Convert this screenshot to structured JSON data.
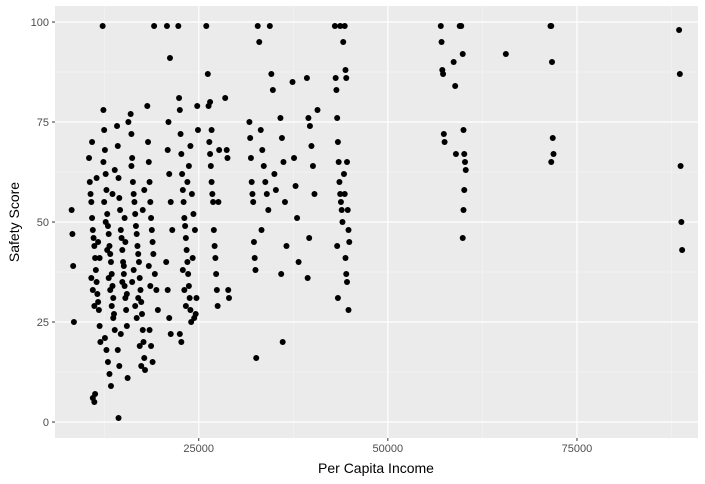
{
  "chart_data": {
    "type": "scatter",
    "title": "",
    "xlabel": "Per Capita Income",
    "ylabel": "Safety Score",
    "xlim": [
      6000,
      91000
    ],
    "ylim": [
      -4,
      104
    ],
    "x_ticks": [
      25000,
      50000,
      75000
    ],
    "x_tick_labels": [
      "25000",
      "50000",
      "75000"
    ],
    "y_ticks": [
      0,
      25,
      50,
      75,
      100
    ],
    "y_tick_labels": [
      "0",
      "25",
      "50",
      "75",
      "100"
    ],
    "grid": true,
    "legend": "none",
    "colors": {
      "panel": "#ebebeb",
      "grid_major": "#ffffff",
      "grid_minor": "#f5f5f5",
      "point": "#000000"
    },
    "points": [
      [
        8200,
        53
      ],
      [
        8300,
        47
      ],
      [
        8400,
        39
      ],
      [
        8500,
        25
      ],
      [
        10500,
        66
      ],
      [
        10600,
        60
      ],
      [
        10700,
        57
      ],
      [
        10800,
        55
      ],
      [
        10900,
        51
      ],
      [
        11000,
        48
      ],
      [
        11100,
        46
      ],
      [
        11200,
        44
      ],
      [
        11300,
        41
      ],
      [
        11400,
        38
      ],
      [
        11500,
        35
      ],
      [
        11600,
        32
      ],
      [
        11700,
        30
      ],
      [
        11800,
        28
      ],
      [
        11900,
        24
      ],
      [
        12000,
        20
      ],
      [
        10800,
        36
      ],
      [
        11000,
        33
      ],
      [
        11200,
        29
      ],
      [
        11000,
        6
      ],
      [
        11200,
        5
      ],
      [
        11300,
        7
      ],
      [
        10900,
        70
      ],
      [
        11500,
        61
      ],
      [
        11700,
        45
      ],
      [
        11900,
        41
      ],
      [
        12300,
        99
      ],
      [
        12400,
        78
      ],
      [
        12500,
        73
      ],
      [
        12600,
        68
      ],
      [
        12700,
        62
      ],
      [
        12800,
        58
      ],
      [
        12900,
        52
      ],
      [
        13000,
        49
      ],
      [
        13100,
        47
      ],
      [
        13200,
        44
      ],
      [
        13300,
        42
      ],
      [
        13400,
        40
      ],
      [
        13500,
        37
      ],
      [
        13600,
        34
      ],
      [
        13700,
        31
      ],
      [
        13800,
        27
      ],
      [
        13900,
        23
      ],
      [
        12600,
        21
      ],
      [
        12800,
        18
      ],
      [
        13000,
        15
      ],
      [
        13200,
        12
      ],
      [
        13400,
        9
      ],
      [
        12500,
        55
      ],
      [
        12700,
        50
      ],
      [
        12900,
        43
      ],
      [
        13100,
        36
      ],
      [
        13300,
        33
      ],
      [
        13500,
        29
      ],
      [
        13700,
        26
      ],
      [
        13900,
        63
      ],
      [
        12400,
        65
      ],
      [
        13600,
        57
      ],
      [
        14200,
        74
      ],
      [
        14300,
        69
      ],
      [
        14400,
        61
      ],
      [
        14500,
        56
      ],
      [
        14600,
        53
      ],
      [
        14700,
        48
      ],
      [
        14800,
        46
      ],
      [
        14900,
        43
      ],
      [
        15000,
        40
      ],
      [
        15100,
        37
      ],
      [
        15200,
        34
      ],
      [
        15300,
        31
      ],
      [
        15400,
        28
      ],
      [
        15500,
        24
      ],
      [
        14300,
        18
      ],
      [
        14500,
        14
      ],
      [
        14700,
        22
      ],
      [
        14900,
        35
      ],
      [
        15100,
        39
      ],
      [
        15300,
        45
      ],
      [
        14400,
        1
      ],
      [
        15600,
        11
      ],
      [
        15700,
        75
      ],
      [
        15200,
        51
      ],
      [
        15500,
        32
      ],
      [
        16000,
        77
      ],
      [
        16100,
        72
      ],
      [
        16200,
        66
      ],
      [
        16300,
        60
      ],
      [
        16400,
        57
      ],
      [
        16500,
        55
      ],
      [
        16600,
        52
      ],
      [
        16700,
        49
      ],
      [
        16800,
        47
      ],
      [
        16900,
        44
      ],
      [
        17000,
        42
      ],
      [
        17100,
        40
      ],
      [
        17200,
        36
      ],
      [
        17300,
        33
      ],
      [
        17400,
        30
      ],
      [
        17500,
        27
      ],
      [
        17600,
        23
      ],
      [
        17700,
        20
      ],
      [
        17800,
        16
      ],
      [
        17900,
        13
      ],
      [
        16200,
        35
      ],
      [
        16400,
        38
      ],
      [
        16600,
        29
      ],
      [
        16800,
        26
      ],
      [
        17000,
        31
      ],
      [
        17200,
        19
      ],
      [
        17400,
        14
      ],
      [
        17600,
        53
      ],
      [
        17800,
        58
      ],
      [
        16100,
        64
      ],
      [
        18200,
        79
      ],
      [
        18300,
        70
      ],
      [
        18400,
        65
      ],
      [
        18500,
        60
      ],
      [
        18600,
        55
      ],
      [
        18700,
        51
      ],
      [
        18800,
        48
      ],
      [
        18900,
        45
      ],
      [
        19000,
        42
      ],
      [
        19200,
        37
      ],
      [
        19400,
        33
      ],
      [
        19600,
        28
      ],
      [
        18500,
        23
      ],
      [
        18700,
        19
      ],
      [
        18900,
        15
      ],
      [
        19100,
        99
      ],
      [
        18400,
        39
      ],
      [
        18600,
        34
      ],
      [
        20800,
        99
      ],
      [
        21200,
        91
      ],
      [
        21000,
        75
      ],
      [
        20900,
        68
      ],
      [
        21100,
        62
      ],
      [
        21300,
        55
      ],
      [
        21500,
        48
      ],
      [
        20700,
        40
      ],
      [
        20900,
        33
      ],
      [
        21100,
        26
      ],
      [
        21300,
        22
      ],
      [
        22300,
        99
      ],
      [
        22400,
        81
      ],
      [
        22500,
        78
      ],
      [
        22600,
        72
      ],
      [
        22700,
        67
      ],
      [
        22800,
        62
      ],
      [
        22900,
        58
      ],
      [
        23000,
        55
      ],
      [
        23100,
        51
      ],
      [
        23200,
        49
      ],
      [
        23300,
        46
      ],
      [
        23400,
        43
      ],
      [
        23500,
        40
      ],
      [
        23600,
        37
      ],
      [
        23700,
        34
      ],
      [
        23800,
        31
      ],
      [
        23900,
        28
      ],
      [
        24000,
        25
      ],
      [
        22500,
        22
      ],
      [
        22700,
        20
      ],
      [
        22900,
        38
      ],
      [
        23100,
        33
      ],
      [
        23300,
        29
      ],
      [
        23500,
        60
      ],
      [
        23700,
        64
      ],
      [
        23900,
        69
      ],
      [
        24100,
        57
      ],
      [
        24300,
        52
      ],
      [
        24500,
        48
      ],
      [
        24200,
        41
      ],
      [
        24400,
        26
      ],
      [
        24600,
        27
      ],
      [
        24700,
        31
      ],
      [
        24800,
        79
      ],
      [
        24900,
        73
      ],
      [
        26000,
        99
      ],
      [
        26200,
        87
      ],
      [
        26300,
        79
      ],
      [
        26400,
        70
      ],
      [
        26500,
        67
      ],
      [
        26600,
        64
      ],
      [
        26700,
        60
      ],
      [
        26800,
        57
      ],
      [
        26900,
        55
      ],
      [
        27000,
        48
      ],
      [
        27100,
        44
      ],
      [
        27200,
        41
      ],
      [
        27300,
        37
      ],
      [
        27400,
        33
      ],
      [
        27500,
        29
      ],
      [
        26500,
        80
      ],
      [
        26700,
        73
      ],
      [
        27600,
        55
      ],
      [
        27700,
        68
      ],
      [
        28500,
        81
      ],
      [
        28700,
        68
      ],
      [
        28800,
        66
      ],
      [
        28900,
        33
      ],
      [
        29000,
        31
      ],
      [
        31700,
        75
      ],
      [
        31800,
        71
      ],
      [
        31900,
        66
      ],
      [
        32000,
        60
      ],
      [
        32100,
        57
      ],
      [
        32200,
        55
      ],
      [
        32300,
        45
      ],
      [
        32400,
        41
      ],
      [
        32500,
        38
      ],
      [
        32600,
        16
      ],
      [
        32800,
        99
      ],
      [
        33000,
        95
      ],
      [
        33200,
        73
      ],
      [
        33400,
        68
      ],
      [
        33600,
        64
      ],
      [
        33800,
        60
      ],
      [
        34000,
        57
      ],
      [
        34200,
        53
      ],
      [
        33300,
        48
      ],
      [
        34400,
        99
      ],
      [
        34600,
        87
      ],
      [
        34800,
        83
      ],
      [
        35000,
        62
      ],
      [
        35200,
        58
      ],
      [
        35800,
        76
      ],
      [
        36000,
        71
      ],
      [
        36200,
        65
      ],
      [
        36400,
        55
      ],
      [
        36600,
        44
      ],
      [
        35900,
        37
      ],
      [
        36100,
        20
      ],
      [
        37400,
        85
      ],
      [
        37600,
        66
      ],
      [
        37800,
        59
      ],
      [
        38000,
        51
      ],
      [
        38200,
        40
      ],
      [
        39300,
        86
      ],
      [
        39500,
        76
      ],
      [
        39700,
        74
      ],
      [
        39900,
        69
      ],
      [
        40100,
        64
      ],
      [
        40300,
        57
      ],
      [
        39600,
        46
      ],
      [
        39400,
        36
      ],
      [
        40700,
        78
      ],
      [
        43000,
        99
      ],
      [
        43100,
        86
      ],
      [
        43200,
        83
      ],
      [
        43300,
        76
      ],
      [
        43400,
        70
      ],
      [
        43500,
        65
      ],
      [
        43600,
        60
      ],
      [
        43700,
        57
      ],
      [
        43800,
        55
      ],
      [
        43900,
        53
      ],
      [
        44000,
        50
      ],
      [
        43300,
        44
      ],
      [
        43400,
        31
      ],
      [
        43700,
        99
      ],
      [
        44100,
        95
      ],
      [
        44300,
        99
      ],
      [
        44400,
        88
      ],
      [
        44500,
        86
      ],
      [
        44600,
        65
      ],
      [
        44700,
        53
      ],
      [
        44800,
        48
      ],
      [
        44900,
        45
      ],
      [
        44400,
        41
      ],
      [
        44500,
        37
      ],
      [
        44600,
        35
      ],
      [
        44800,
        28
      ],
      [
        44200,
        62
      ],
      [
        44300,
        57
      ],
      [
        57000,
        99
      ],
      [
        57100,
        95
      ],
      [
        57200,
        88
      ],
      [
        57300,
        87
      ],
      [
        57400,
        72
      ],
      [
        57500,
        70
      ],
      [
        58700,
        90
      ],
      [
        58900,
        84
      ],
      [
        59000,
        67
      ],
      [
        59500,
        99
      ],
      [
        59700,
        99
      ],
      [
        59900,
        92
      ],
      [
        60000,
        73
      ],
      [
        60100,
        67
      ],
      [
        60200,
        65
      ],
      [
        60300,
        63
      ],
      [
        60100,
        58
      ],
      [
        60000,
        53
      ],
      [
        59900,
        46
      ],
      [
        65600,
        92
      ],
      [
        71500,
        99
      ],
      [
        71600,
        99
      ],
      [
        71700,
        90
      ],
      [
        71800,
        71
      ],
      [
        71900,
        67
      ],
      [
        71600,
        65
      ],
      [
        88500,
        98
      ],
      [
        88600,
        87
      ],
      [
        88700,
        64
      ],
      [
        88800,
        50
      ],
      [
        88900,
        43
      ]
    ]
  }
}
